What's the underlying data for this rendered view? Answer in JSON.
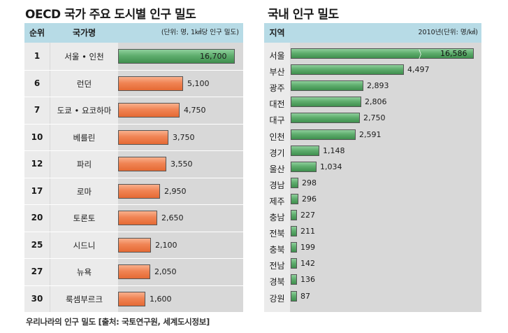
{
  "colors": {
    "header": "#b7dbe6",
    "orange_bar": "#ec7a48",
    "green_bar": "#5aa968"
  },
  "chart_data": [
    {
      "type": "bar",
      "title": "OECD 국가 주요 도시별 인구 밀도",
      "headers": {
        "rank": "순위",
        "city": "국가명",
        "unit": "(단위: 명, 1㎢당 인구 밀도)"
      },
      "ranks": [
        "1",
        "6",
        "7",
        "10",
        "12",
        "17",
        "20",
        "25",
        "27",
        "30"
      ],
      "categories": [
        "서울 • 인천",
        "런던",
        "도쿄 • 요코하마",
        "베를린",
        "파리",
        "로마",
        "토론토",
        "시드니",
        "뉴욕",
        "룩셈부르크"
      ],
      "values": [
        16700,
        5100,
        4750,
        3750,
        3550,
        2950,
        2650,
        2100,
        2050,
        1600
      ],
      "value_labels": [
        "16,700",
        "5,100",
        "4,750",
        "3,750",
        "3,550",
        "2,950",
        "2,650",
        "2,100",
        "2,050",
        "1,600"
      ]
    },
    {
      "type": "bar",
      "title": "국내 인구 밀도",
      "headers": {
        "region": "지역",
        "unit": "2010년(단위: 명/㎢)"
      },
      "categories": [
        "서울",
        "부산",
        "광주",
        "대전",
        "대구",
        "인천",
        "경기",
        "울산",
        "경남",
        "제주",
        "충남",
        "전북",
        "충북",
        "전남",
        "경북",
        "강원"
      ],
      "values": [
        16586,
        4497,
        2893,
        2806,
        2750,
        2591,
        1148,
        1034,
        298,
        296,
        227,
        211,
        199,
        142,
        136,
        87
      ],
      "value_labels": [
        "16,586",
        "4,497",
        "2,893",
        "2,806",
        "2,750",
        "2,591",
        "1,148",
        "1,034",
        "298",
        "296",
        "227",
        "211",
        "199",
        "142",
        "136",
        "87"
      ],
      "axis_break_on_first": true
    }
  ],
  "caption": "우리나라의 인구 밀도 [출처: 국토연구원, 세계도시정보]"
}
